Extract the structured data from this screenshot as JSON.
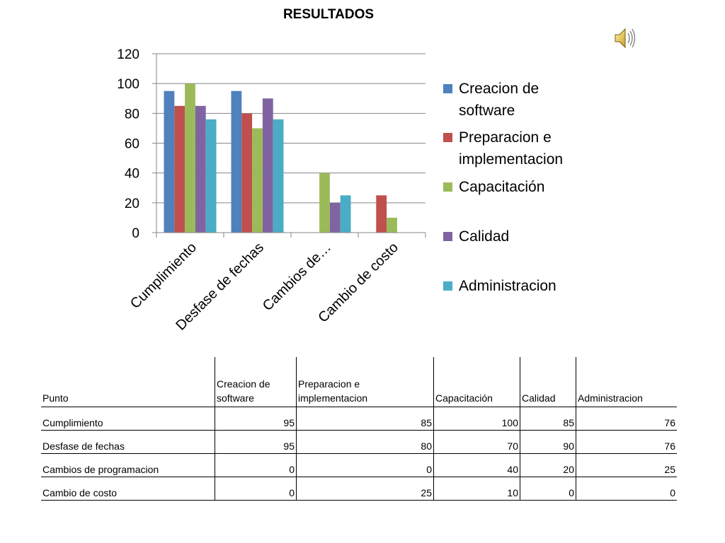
{
  "title": "RESULTADOS",
  "audio_icon": "speaker-icon",
  "chart_data": {
    "type": "bar",
    "categories": [
      "Cumplimiento",
      "Desfase de fechas",
      "Cambios de…",
      "Cambio de costo"
    ],
    "series": [
      {
        "name": "Creacion de software",
        "values": [
          95,
          95,
          0,
          0
        ],
        "color": "#4F81BD"
      },
      {
        "name": "Preparacion e implementacion",
        "values": [
          85,
          80,
          0,
          25
        ],
        "color": "#C0504D"
      },
      {
        "name": "Capacitación",
        "values": [
          100,
          70,
          40,
          10
        ],
        "color": "#9BBB59"
      },
      {
        "name": "Calidad",
        "values": [
          85,
          90,
          20,
          0
        ],
        "color": "#8064A2"
      },
      {
        "name": "Administracion",
        "values": [
          76,
          76,
          25,
          0
        ],
        "color": "#4BACC6"
      }
    ],
    "y_ticks": [
      "0",
      "20",
      "40",
      "60",
      "80",
      "100",
      "120"
    ],
    "ylim": [
      0,
      120
    ],
    "grid": true,
    "legend_position": "right"
  },
  "table": {
    "headers": [
      "Punto",
      "Creacion de software",
      "Preparacion e implementacion",
      "Capacitación",
      "Calidad",
      "Administracion"
    ],
    "rows": [
      [
        "Cumplimiento",
        "95",
        "85",
        "100",
        "85",
        "76"
      ],
      [
        "Desfase de fechas",
        "95",
        "80",
        "70",
        "90",
        "76"
      ],
      [
        "Cambios de programacion",
        "0",
        "0",
        "40",
        "20",
        "25"
      ],
      [
        "Cambio de costo",
        "0",
        "25",
        "10",
        "0",
        "0"
      ]
    ]
  }
}
